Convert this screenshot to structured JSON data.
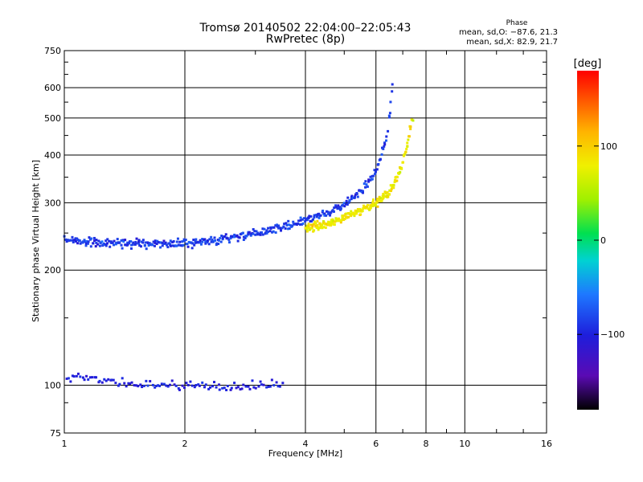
{
  "chart_data": {
    "type": "scatter",
    "title": "Tromsø 20140502 22:04:00–22:05:43",
    "subtitle": "RwPretec (8p)",
    "xlabel": "Frequency [MHz]",
    "ylabel": "Stationary phase Virtual Height [km]",
    "x_scale": "log",
    "y_scale": "log",
    "xlim": [
      1,
      16
    ],
    "ylim": [
      75,
      750
    ],
    "x_ticks": [
      "1",
      "2",
      "4",
      "6",
      "8",
      "10",
      "16"
    ],
    "y_ticks": [
      "75",
      "100",
      "200",
      "300",
      "400",
      "500",
      "600",
      "750"
    ],
    "grid": true,
    "phase_stats": {
      "heading": "Phase",
      "line_o": "mean, sd,O: −87.6, 21.3",
      "line_x": "mean, sd,X:  82.9, 21.7"
    },
    "colorbar": {
      "label": "[deg]",
      "range": [
        -180,
        180
      ],
      "ticks": [
        "100",
        "0",
        "−100"
      ],
      "tick_values": [
        100,
        0,
        -100
      ]
    },
    "series": [
      {
        "mode": "O",
        "phase_mean": -87.6,
        "phase_sd": 21.3,
        "x": [
          1.0,
          1.1,
          1.2,
          1.3,
          1.4,
          1.5,
          1.6,
          1.8,
          2.0,
          2.3,
          2.6,
          3.0,
          3.5,
          4.0,
          4.5,
          5.0,
          5.5,
          6.0,
          6.2,
          6.4,
          6.5,
          6.6
        ],
        "y": [
          240,
          238,
          236,
          235,
          235,
          235,
          234,
          234,
          235,
          238,
          242,
          248,
          258,
          270,
          282,
          296,
          320,
          360,
          400,
          450,
          520,
          620
        ]
      },
      {
        "mode": "X",
        "phase_mean": 82.9,
        "phase_sd": 21.7,
        "x": [
          4.0,
          4.5,
          5.0,
          5.5,
          6.0,
          6.5,
          7.0,
          7.2,
          7.4
        ],
        "y": [
          258,
          265,
          275,
          285,
          300,
          320,
          380,
          430,
          500
        ]
      },
      {
        "mode": "Es",
        "phase_mean": -100,
        "x": [
          1.0,
          1.2,
          1.5,
          2.0,
          2.5,
          3.0,
          3.5
        ],
        "y": [
          105,
          104,
          100,
          100,
          99,
          100,
          100
        ]
      }
    ]
  }
}
